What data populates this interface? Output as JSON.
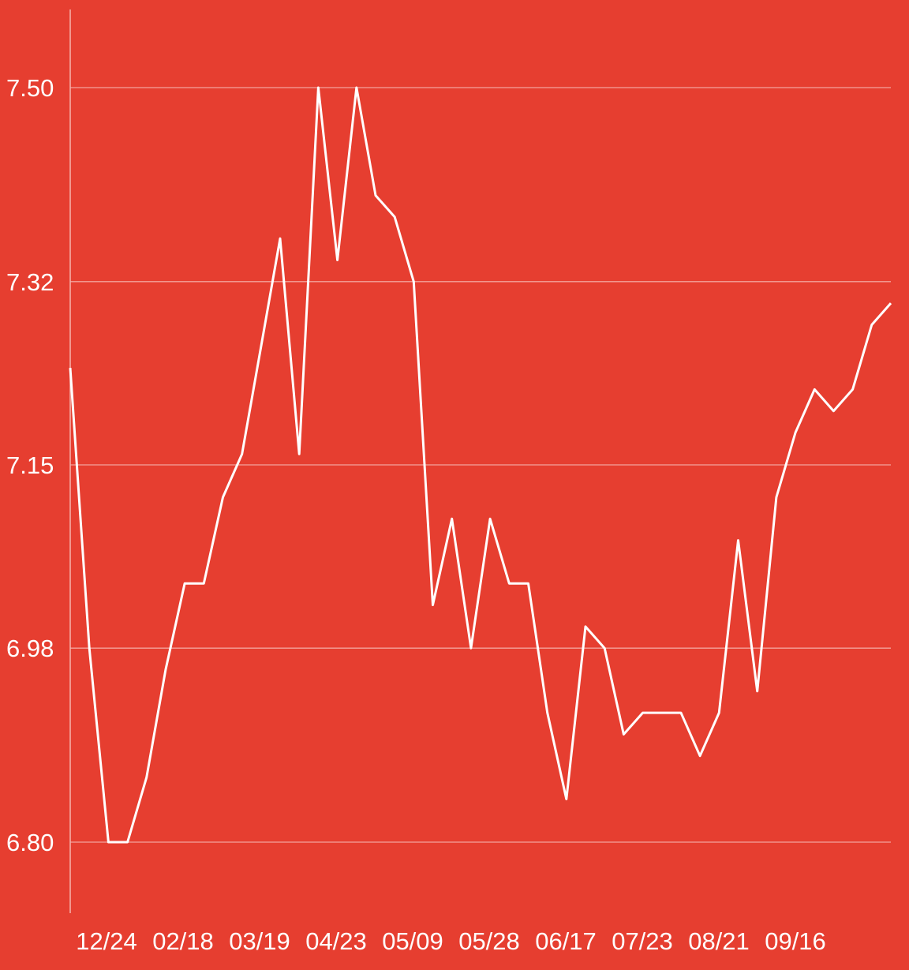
{
  "chart_data": {
    "type": "line",
    "title": "",
    "xlabel": "",
    "ylabel": "",
    "x_tick_labels": [
      "12/24",
      "02/18",
      "03/19",
      "04/23",
      "05/09",
      "05/28",
      "06/17",
      "07/23",
      "08/21",
      "09/16"
    ],
    "y_tick_labels": [
      "7.50",
      "7.32",
      "7.15",
      "6.98",
      "6.80"
    ],
    "y_ticks": [
      7.5,
      7.32,
      7.15,
      6.98,
      6.8
    ],
    "ylim": [
      6.735,
      7.575
    ],
    "grid": "horizontal",
    "series": [
      {
        "values": [
          7.24,
          6.98,
          6.8,
          6.8,
          6.86,
          6.96,
          7.04,
          7.04,
          7.12,
          7.16,
          7.26,
          7.36,
          7.16,
          7.5,
          7.34,
          7.5,
          7.4,
          7.38,
          7.32,
          7.02,
          7.1,
          6.98,
          7.1,
          7.04,
          7.04,
          6.92,
          6.84,
          7.0,
          6.98,
          6.9,
          6.92,
          6.92,
          6.92,
          6.88,
          6.92,
          7.08,
          6.94,
          7.12,
          7.18,
          7.22,
          7.2,
          7.22,
          7.28,
          7.3
        ]
      }
    ],
    "colors": {
      "background": "#e63e30",
      "line": "#ffffff",
      "grid": "#f3a39c",
      "axis": "#f5b3ad"
    }
  }
}
